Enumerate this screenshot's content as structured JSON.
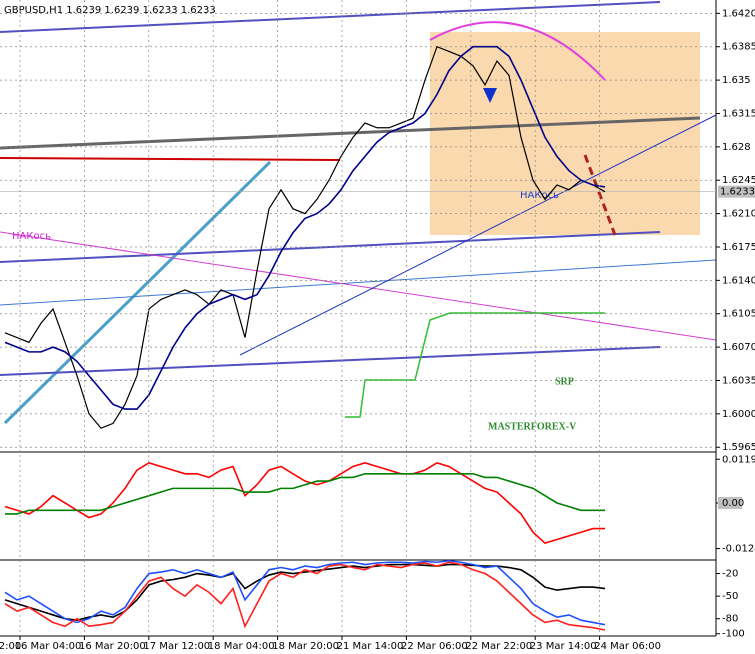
{
  "chart_data": [
    {
      "type": "line",
      "title": "GBPUSD,H1  1.6239 1.6239 1.6233 1.6233",
      "ylim": [
        1.596,
        1.6434
      ],
      "yticks": [
        {
          "value": 1.642,
          "label": "1.6420"
        },
        1.6385,
        1.635,
        1.6315,
        1.628,
        1.6245,
        {
          "value": 1.621,
          "label": "1.6210"
        },
        1.6175,
        {
          "value": 1.614,
          "label": "1.6140"
        },
        1.6105,
        {
          "value": 1.607,
          "label": "1.6070"
        },
        1.6035,
        {
          "value": 1.6,
          "label": "1.6000"
        },
        1.5965
      ],
      "last_price": 1.6233,
      "annotations": [
        "SRP",
        "MASTERFOREX-V",
        "НАКось",
        "НАКось"
      ],
      "series": [
        {
          "color": "#000000",
          "values": [
            1.6085,
            1.608,
            1.6075,
            1.6095,
            1.611,
            1.6075,
            1.604,
            1.6,
            1.5985,
            1.599,
            1.601,
            1.604,
            1.611,
            1.612,
            1.6125,
            1.613,
            1.6125,
            1.6115,
            1.613,
            1.6125,
            1.608,
            1.615,
            1.6215,
            1.6235,
            1.6215,
            1.621,
            1.6225,
            1.6245,
            1.627,
            1.629,
            1.6305,
            1.63,
            1.63,
            1.6305,
            1.631,
            1.635,
            1.6385,
            1.638,
            1.6375,
            1.6365,
            1.6345,
            1.637,
            1.6355,
            1.629,
            1.6245,
            1.6225,
            1.624,
            1.6235,
            1.6245,
            1.624,
            1.6233
          ]
        },
        {
          "color": "#00008b",
          "values": [
            1.6075,
            1.607,
            1.6065,
            1.6065,
            1.607,
            1.6065,
            1.6055,
            1.604,
            1.6025,
            1.601,
            1.6005,
            1.6005,
            1.602,
            1.6045,
            1.607,
            1.609,
            1.6105,
            1.6115,
            1.612,
            1.6125,
            1.612,
            1.6125,
            1.6145,
            1.617,
            1.619,
            1.6205,
            1.621,
            1.622,
            1.6235,
            1.6255,
            1.627,
            1.6285,
            1.6295,
            1.63,
            1.6305,
            1.6315,
            1.6335,
            1.636,
            1.6375,
            1.6385,
            1.6385,
            1.6385,
            1.6375,
            1.635,
            1.632,
            1.629,
            1.627,
            1.6255,
            1.6245,
            1.624,
            1.6238
          ]
        }
      ]
    },
    {
      "type": "line",
      "ylim": [
        -0.01561,
        0.01396
      ],
      "yticks": [
        0.01197,
        {
          "value": 0,
          "label": "0.00"
        },
        -0.01248
      ],
      "series": [
        {
          "color": "#ff0000",
          "values": [
            -0.001,
            -0.002,
            -0.003,
            -0.001,
            0.002,
            0.0,
            -0.002,
            -0.004,
            -0.003,
            0.0,
            0.004,
            0.009,
            0.011,
            0.01,
            0.009,
            0.008,
            0.008,
            0.007,
            0.009,
            0.01,
            0.002,
            0.005,
            0.009,
            0.01,
            0.008,
            0.006,
            0.005,
            0.006,
            0.008,
            0.01,
            0.011,
            0.01,
            0.009,
            0.008,
            0.008,
            0.009,
            0.011,
            0.01,
            0.008,
            0.006,
            0.004,
            0.003,
            0.0,
            -0.003,
            -0.008,
            -0.011,
            -0.01,
            -0.009,
            -0.008,
            -0.007,
            -0.007
          ]
        },
        {
          "color": "#008000",
          "values": [
            -0.003,
            -0.003,
            -0.002,
            -0.002,
            -0.002,
            -0.002,
            -0.002,
            -0.002,
            -0.002,
            -0.001,
            0.0,
            0.001,
            0.002,
            0.003,
            0.004,
            0.004,
            0.004,
            0.004,
            0.004,
            0.004,
            0.003,
            0.003,
            0.003,
            0.004,
            0.004,
            0.005,
            0.006,
            0.006,
            0.007,
            0.007,
            0.008,
            0.008,
            0.008,
            0.008,
            0.008,
            0.008,
            0.008,
            0.008,
            0.008,
            0.008,
            0.007,
            0.007,
            0.006,
            0.005,
            0.004,
            0.002,
            0.0,
            -0.001,
            -0.002,
            -0.002,
            -0.002
          ]
        }
      ]
    },
    {
      "type": "line",
      "ylim": [
        -103,
        -2
      ],
      "yticks": [
        -20,
        -50,
        -80,
        -100
      ],
      "x_labels": [
        "2:00",
        "16 Mar 04:00",
        "16 Mar 20:00",
        "17 Mar 12:00",
        "18 Mar 04:00",
        "18 Mar 20:00",
        "21 Mar 14:00",
        "22 Mar 06:00",
        "22 Mar 22:00",
        "23 Mar 14:00",
        "24 Mar 06:00"
      ],
      "series": [
        {
          "color": "#000000",
          "values": [
            -55,
            -60,
            -65,
            -70,
            -75,
            -80,
            -82,
            -78,
            -75,
            -78,
            -70,
            -55,
            -35,
            -30,
            -28,
            -25,
            -20,
            -22,
            -25,
            -20,
            -40,
            -30,
            -22,
            -18,
            -20,
            -18,
            -16,
            -14,
            -12,
            -10,
            -12,
            -10,
            -8,
            -8,
            -8,
            -9,
            -10,
            -8,
            -8,
            -9,
            -10,
            -10,
            -12,
            -15,
            -25,
            -38,
            -42,
            -40,
            -38,
            -38,
            -40
          ]
        },
        {
          "color": "#1e4fff",
          "values": [
            -45,
            -55,
            -50,
            -60,
            -70,
            -80,
            -85,
            -80,
            -70,
            -75,
            -65,
            -40,
            -20,
            -18,
            -15,
            -20,
            -15,
            -20,
            -25,
            -18,
            -55,
            -35,
            -15,
            -12,
            -15,
            -10,
            -12,
            -8,
            -6,
            -5,
            -8,
            -6,
            -5,
            -5,
            -6,
            -4,
            -5,
            -3,
            -5,
            -8,
            -12,
            -10,
            -25,
            -40,
            -60,
            -70,
            -78,
            -75,
            -82,
            -85,
            -88
          ]
        },
        {
          "color": "#ff2020",
          "values": [
            -60,
            -70,
            -65,
            -75,
            -85,
            -90,
            -80,
            -90,
            -88,
            -85,
            -70,
            -50,
            -30,
            -25,
            -40,
            -50,
            -35,
            -45,
            -60,
            -40,
            -90,
            -60,
            -30,
            -20,
            -25,
            -15,
            -20,
            -10,
            -8,
            -12,
            -15,
            -8,
            -10,
            -12,
            -8,
            -6,
            -10,
            -5,
            -8,
            -15,
            -20,
            -30,
            -45,
            -60,
            -75,
            -85,
            -82,
            -88,
            -90,
            -92,
            -95
          ]
        }
      ]
    }
  ]
}
